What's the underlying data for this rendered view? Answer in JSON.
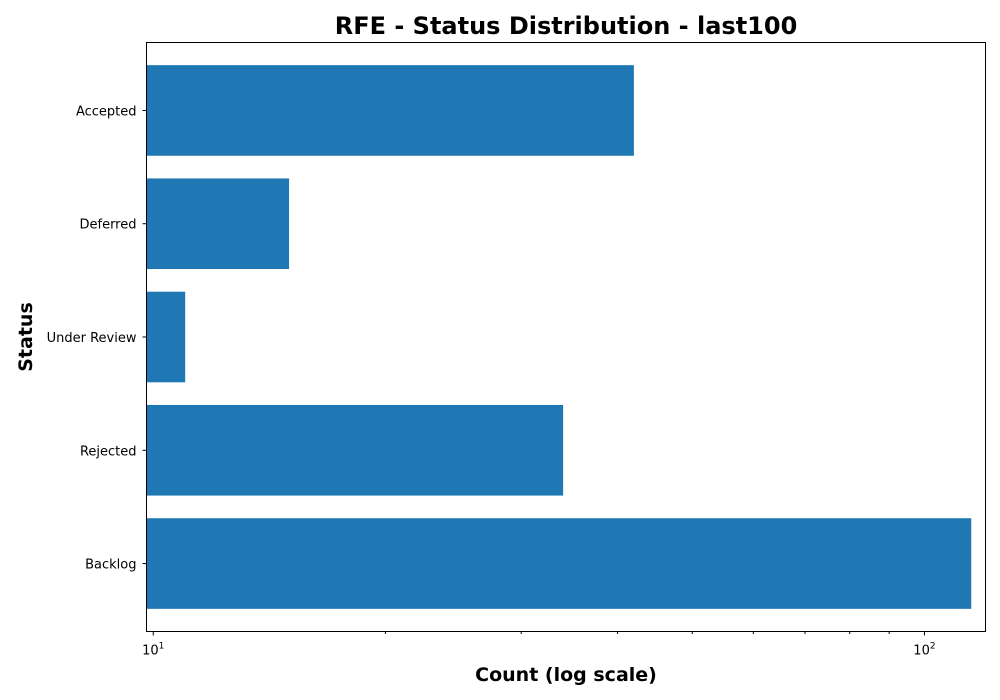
{
  "chart_data": {
    "type": "bar",
    "orientation": "horizontal",
    "title": "RFE - Status Distribution - last100",
    "xlabel": "Count (log scale)",
    "ylabel": "Status",
    "xscale": "log",
    "xlim": [
      9.8,
      120
    ],
    "categories": [
      "Accepted",
      "Deferred",
      "Under Review",
      "Rejected",
      "Backlog"
    ],
    "values": [
      42,
      15,
      11,
      34,
      115
    ],
    "xticks": [
      {
        "value": 10,
        "base": "10",
        "exp": "1"
      },
      {
        "value": 100,
        "base": "10",
        "exp": "2"
      }
    ],
    "minor_xticks": [
      20,
      30,
      40,
      50,
      60,
      70,
      80,
      90
    ],
    "bar_color": "#1f77b4",
    "grid": false,
    "legend": false
  }
}
